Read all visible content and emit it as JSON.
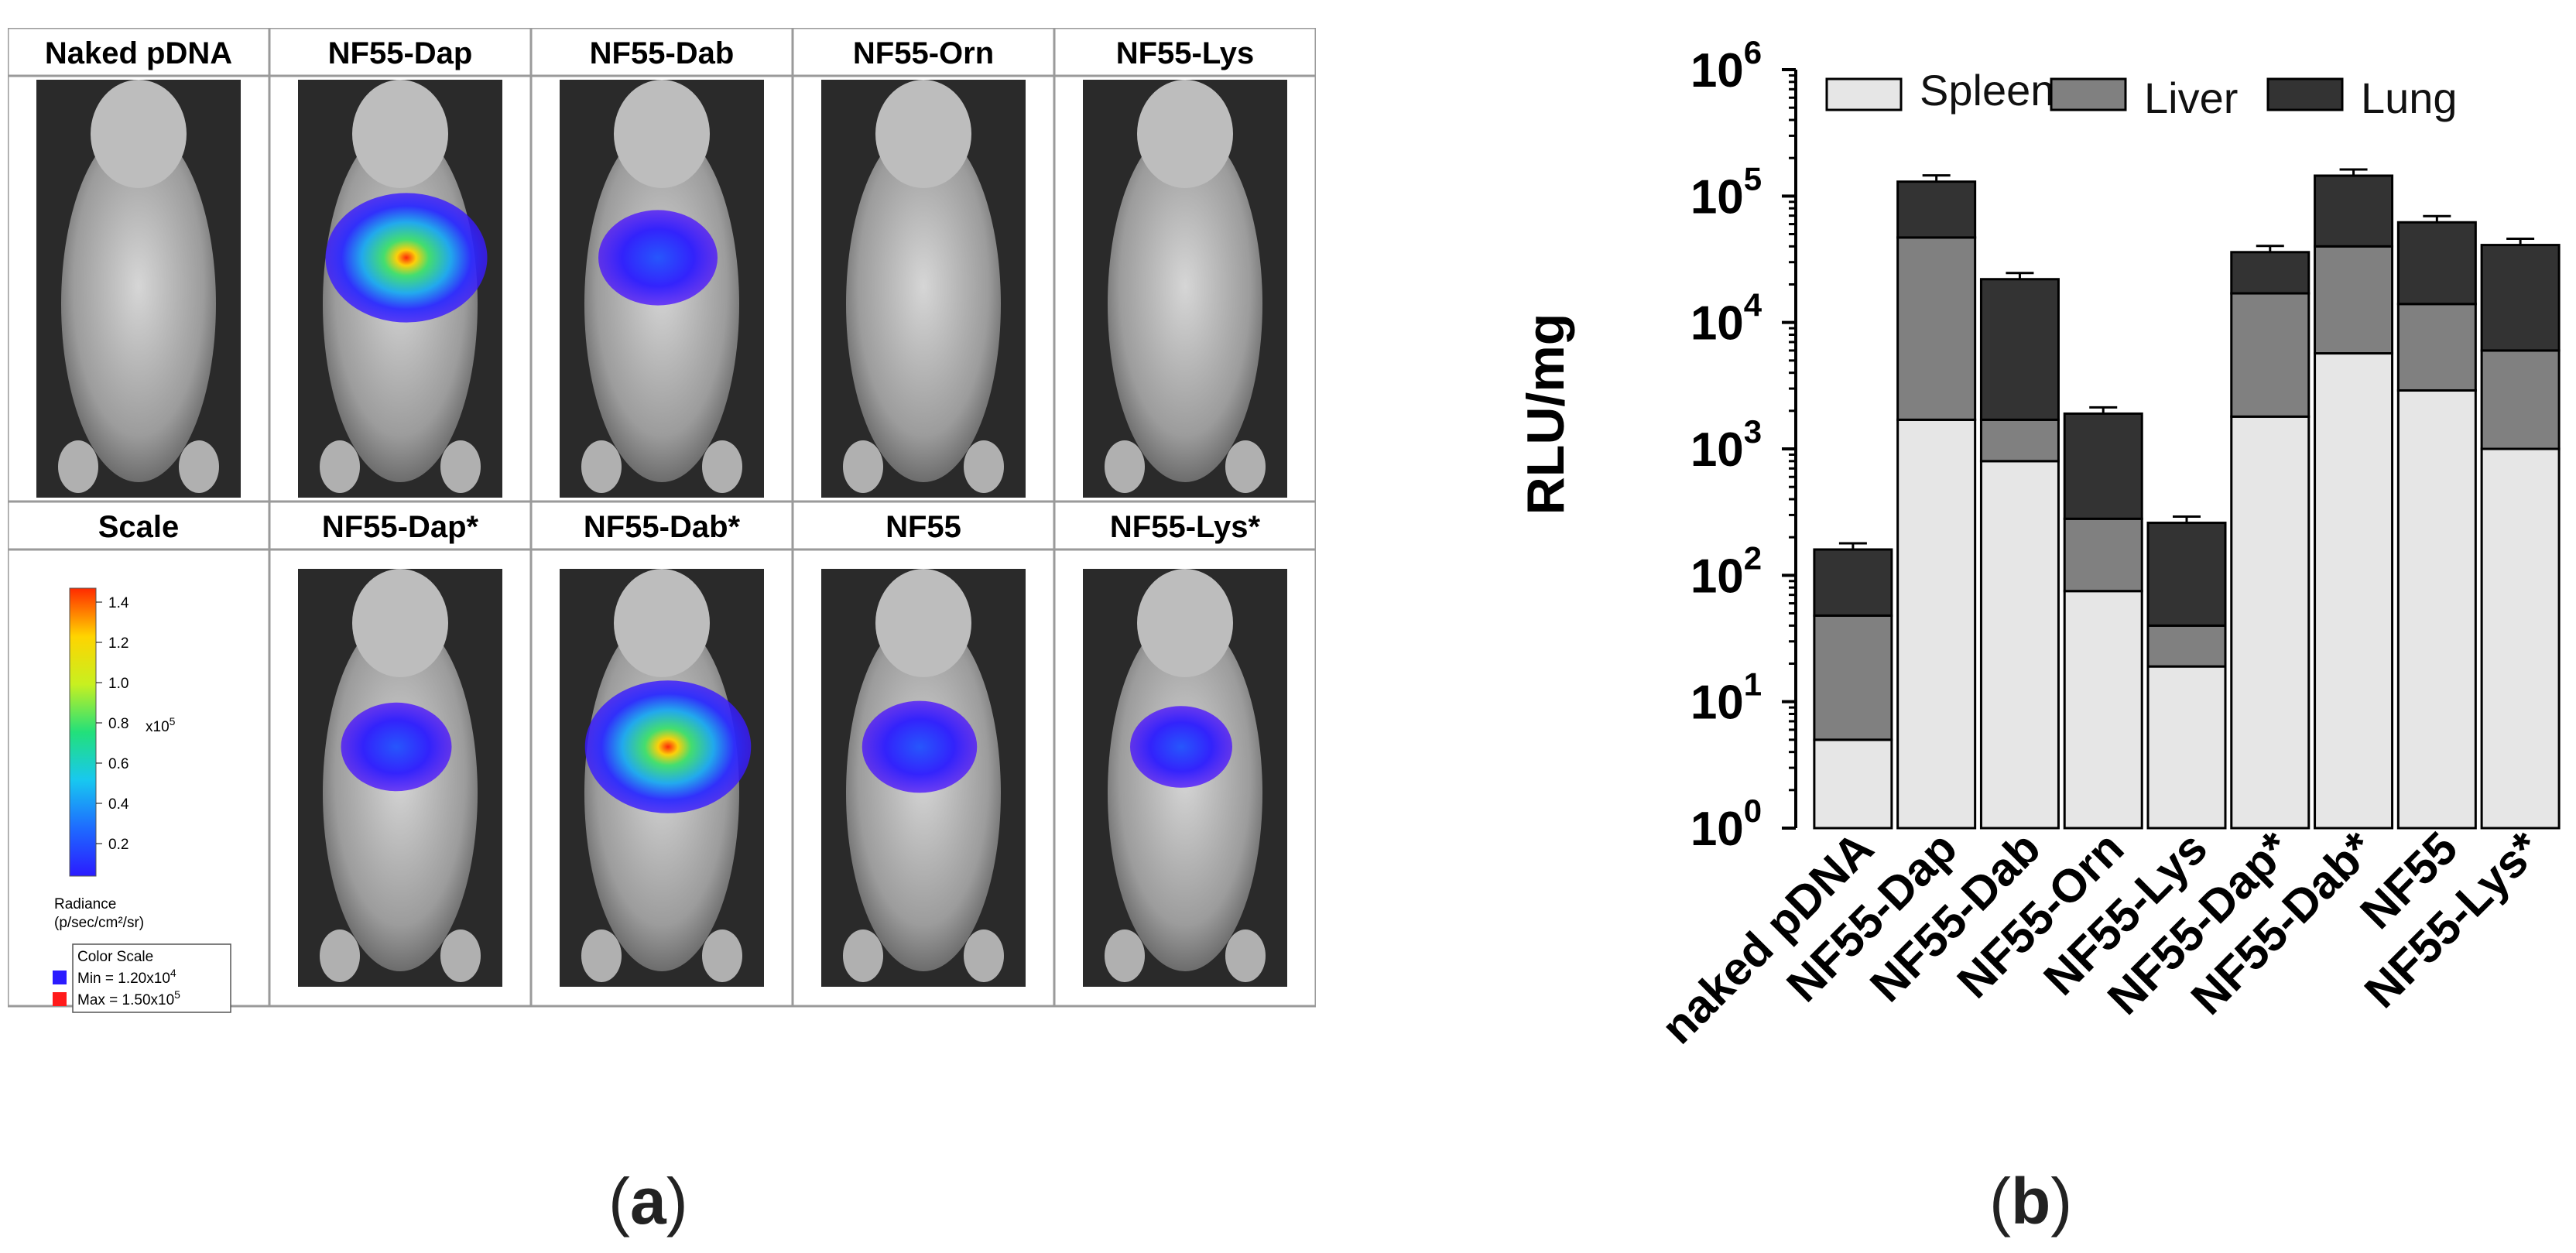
{
  "panel_a": {
    "top_row": [
      "Naked pDNA",
      "NF55-Dap",
      "NF55-Dab",
      "NF55-Orn",
      "NF55-Lys"
    ],
    "bottom_row": [
      "Scale",
      "NF55-Dap*",
      "NF55-Dab*",
      "NF55",
      "NF55-Lys*"
    ],
    "signal_level": {
      "Naked pDNA": 0,
      "NF55-Dap": 0.9,
      "NF55-Dab": 0.4,
      "NF55-Orn": 0,
      "NF55-Lys": 0,
      "NF55-Dap*": 0.3,
      "NF55-Dab*": 0.95,
      "NF55": 0.35,
      "NF55-Lys*": 0.2
    },
    "scale": {
      "ticks": [
        "1.4",
        "1.2",
        "1.0",
        "0.8",
        "0.6",
        "0.4",
        "0.2"
      ],
      "exponent_label": "x10",
      "exponent": "5",
      "unit_line1": "Radiance",
      "unit_line2": "(p/sec/cm²/sr)",
      "box_title": "Color Scale",
      "min_text": "Min = 1.20x10",
      "min_exp": "4",
      "max_text": "Max = 1.50x10",
      "max_exp": "5",
      "colors": [
        "#2b1bff",
        "#1e6bff",
        "#18c8f0",
        "#22e07a",
        "#c8f020",
        "#ffd400",
        "#ff2a00"
      ],
      "min_color": "#2b1bff",
      "max_color": "#ff1a1a"
    },
    "caption_letter": "a"
  },
  "chart_data": {
    "type": "bar",
    "stacked": true,
    "y_scale": "log",
    "ylim": [
      1,
      1000000
    ],
    "ylabel": "RLU/mg",
    "y_ticks": [
      "10",
      "10",
      "10",
      "10",
      "10",
      "10",
      "10"
    ],
    "y_tick_exponents": [
      "0",
      "1",
      "2",
      "3",
      "4",
      "5",
      "6"
    ],
    "categories": [
      "naked pDNA",
      "NF55-Dap",
      "NF55-Dab",
      "NF55-Orn",
      "NF55-Lys",
      "NF55-Dap*",
      "NF55-Dab*",
      "NF55",
      "NF55-Lys*"
    ],
    "series": [
      {
        "name": "Spleen",
        "color": "#e6e6e6",
        "cumulative": [
          5,
          1700,
          800,
          75,
          19,
          1800,
          5700,
          2900,
          1000
        ]
      },
      {
        "name": "Liver",
        "color": "#808080",
        "cumulative": [
          48,
          47000,
          1700,
          280,
          40,
          17000,
          40000,
          14000,
          6000
        ]
      },
      {
        "name": "Lung",
        "color": "#333333",
        "cumulative": [
          160,
          130000,
          22000,
          1900,
          260,
          36000,
          145000,
          62000,
          41000
        ]
      }
    ],
    "legend_position": "top",
    "caption_letter": "b"
  }
}
